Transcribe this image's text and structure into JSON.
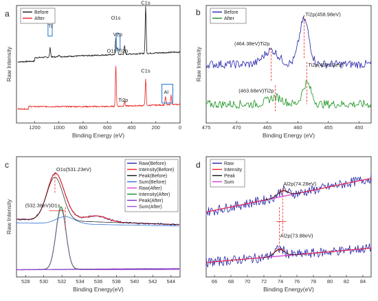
{
  "chart_data": [
    {
      "panel": "a",
      "type": "line",
      "xlabel": "Binding Energy (eV)",
      "ylabel": "Raw Intensity",
      "xlim": [
        1350,
        0
      ],
      "xticks": [
        1200,
        1000,
        800,
        600,
        400,
        200,
        0
      ],
      "ylim": [
        0,
        100
      ],
      "legend": "top-left",
      "series": [
        {
          "name": "Before",
          "color": "#111111",
          "offset": 58,
          "peaks": [
            [
              1072,
              8
            ],
            [
              530,
              14
            ],
            [
              458,
              7
            ],
            [
              517,
              6
            ],
            [
              284,
              40
            ],
            [
              1000,
              2
            ]
          ]
        },
        {
          "name": "After",
          "color": "#e8201c",
          "offset": 14,
          "peaks": [
            [
              530,
              34
            ],
            [
              458,
              4
            ],
            [
              284,
              22
            ],
            [
              120,
              7
            ],
            [
              74,
              8
            ]
          ]
        }
      ],
      "annotations": [
        {
          "text": "Ti",
          "x": 1072,
          "y": 81
        },
        {
          "text": "O1s",
          "x": 530,
          "y": 88
        },
        {
          "text": "V2p",
          "x": 515,
          "y": 74
        },
        {
          "text": "Ti2p",
          "x": 470,
          "y": 60
        },
        {
          "text": "O1s",
          "x": 565,
          "y": 60
        },
        {
          "text": "C1s",
          "x": 284,
          "y": 101
        },
        {
          "text": "C1s",
          "x": 284,
          "y": 43
        },
        {
          "text": "Ti2p",
          "x": 470,
          "y": 18
        },
        {
          "text": "Al",
          "x": 115,
          "y": 25
        }
      ]
    },
    {
      "panel": "b",
      "type": "line",
      "xlabel": "Binding Energy (eV)",
      "ylabel": "Raw Intensity",
      "xlim": [
        475,
        448
      ],
      "xticks": [
        475,
        470,
        465,
        460,
        455,
        450
      ],
      "ylim": [
        0,
        100
      ],
      "legend": "top-left",
      "series": [
        {
          "name": "Before",
          "color": "#1f1fa8",
          "offset": 50,
          "peaks": [
            [
              458.98,
              38,
              0.8
            ],
            [
              464.38,
              12,
              1.2
            ]
          ]
        },
        {
          "name": "After",
          "color": "#14901b",
          "offset": 16,
          "peaks": [
            [
              458.53,
              18,
              0.7
            ],
            [
              463.68,
              6,
              1.2
            ]
          ]
        }
      ],
      "annotations": [
        {
          "text": "Ti2p(458.98eV)",
          "x": 458.98,
          "y": 91
        },
        {
          "text": "(464.38eV)Ti2p",
          "x": 464.38,
          "y": 66
        },
        {
          "text": "Ti2p(458.53eV)",
          "x": 458.53,
          "y": 48
        },
        {
          "text": "(463.68eV)Ti2p",
          "x": 463.68,
          "y": 26
        }
      ]
    },
    {
      "panel": "c",
      "type": "line",
      "xlabel": "Binding Energy(eV)",
      "ylabel": "Raw Intensity",
      "xlim": [
        527,
        545
      ],
      "xticks": [
        528,
        530,
        532,
        534,
        536,
        538,
        540,
        542,
        544
      ],
      "ylim": [
        0,
        100
      ],
      "legend": "top-right",
      "series": [
        {
          "name": "Raw(Before)",
          "color": "#1f1fa8"
        },
        {
          "name": "Intensity(Before)",
          "color": "#e8201c"
        },
        {
          "name": "Peak(Before)",
          "color": "#111111"
        },
        {
          "name": "Sum(Before)",
          "color": "#2f6fd6"
        },
        {
          "name": "Raw(After)",
          "color": "#d23ad2"
        },
        {
          "name": "Intensity(After)",
          "color": "#14901b"
        },
        {
          "name": "Peak(After)",
          "color": "#7b2cc0"
        },
        {
          "name": "Sum(After)",
          "color": "#9b4fd6"
        }
      ],
      "before": {
        "baseline": 48,
        "peaks": [
          [
            531.23,
            36,
            0.9
          ],
          [
            532.38,
            6,
            1.0
          ],
          [
            535.8,
            5,
            1.2
          ]
        ]
      },
      "after": {
        "baseline": 6,
        "peaks": [
          [
            531.9,
            52,
            0.55
          ]
        ]
      },
      "annotations": [
        {
          "text": "O1s(531.23eV)",
          "x": 531.23,
          "y": 88
        },
        {
          "text": "(532.38eV)O1s",
          "x": 531.8,
          "y": 58
        }
      ]
    },
    {
      "panel": "d",
      "type": "line",
      "xlabel": "Binding Energy(eV)",
      "ylabel": "",
      "xlim": [
        65,
        85
      ],
      "xticks": [
        66,
        68,
        70,
        72,
        74,
        76,
        78,
        80,
        82,
        84
      ],
      "ylim": [
        0,
        100
      ],
      "legend": "top-left",
      "series": [
        {
          "name": "Raw",
          "color": "#1f1fa8"
        },
        {
          "name": "Intensity",
          "color": "#e8201c"
        },
        {
          "name": "Peak",
          "color": "#111111"
        },
        {
          "name": "Sum",
          "color": "#d23ad2"
        }
      ],
      "upper": {
        "base_start": 54,
        "base_end": 82,
        "peak": [
          74.28,
          5,
          0.6
        ]
      },
      "lower": {
        "base_start": 12,
        "base_end": 24,
        "peak": [
          73.88,
          6,
          0.6
        ]
      },
      "annotations": [
        {
          "text": "Al2p(74.28eV)",
          "x": 74.28,
          "y": 76
        },
        {
          "text": "Al2p(73.88eV)",
          "x": 73.88,
          "y": 33
        }
      ]
    }
  ]
}
